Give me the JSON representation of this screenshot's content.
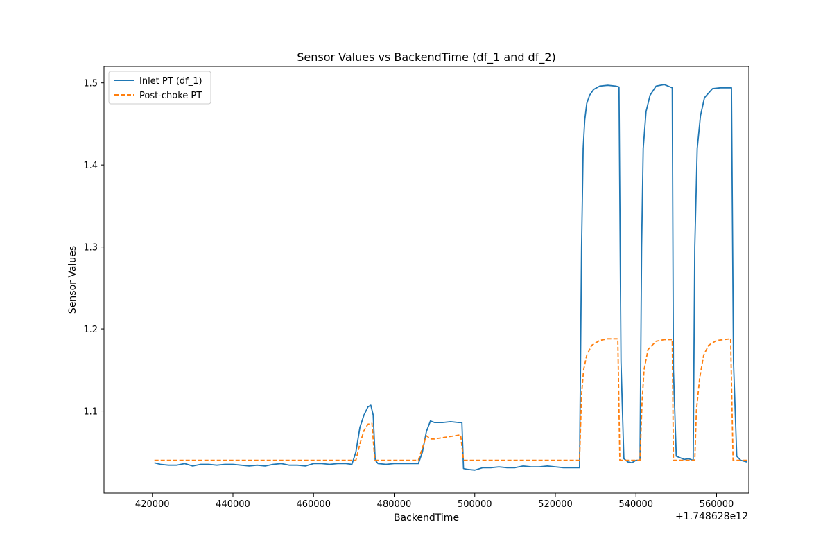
{
  "chart_data": {
    "type": "line",
    "title": "Sensor Values vs BackendTime (df_1 and df_2)",
    "xlabel": "BackendTime",
    "ylabel": "Sensor Values",
    "x_offset_text": "+1.748628e12",
    "xlim": [
      408000,
      568000
    ],
    "ylim": [
      1.0,
      1.52
    ],
    "xticks": [
      420000,
      440000,
      460000,
      480000,
      500000,
      520000,
      540000,
      560000
    ],
    "yticks": [
      1.1,
      1.2,
      1.3,
      1.4,
      1.5
    ],
    "xtick_labels": [
      "420000",
      "440000",
      "460000",
      "480000",
      "500000",
      "520000",
      "540000",
      "560000"
    ],
    "ytick_labels": [
      "1.1",
      "1.2",
      "1.3",
      "1.4",
      "1.5"
    ],
    "grid": false,
    "legend_position": "top-left",
    "series": [
      {
        "name": "Inlet PT (df_1)",
        "color": "#1f77b4",
        "style": "solid",
        "x": [
          420500,
          422000,
          424000,
          426000,
          428000,
          430000,
          432000,
          434000,
          436000,
          438000,
          440000,
          442000,
          444000,
          446000,
          448000,
          450000,
          452000,
          454000,
          456000,
          458000,
          460000,
          462000,
          464000,
          466000,
          468000,
          469500,
          470500,
          471500,
          472500,
          473500,
          474200,
          474800,
          475300,
          476000,
          478000,
          480000,
          482000,
          484000,
          486000,
          487000,
          488000,
          489000,
          490000,
          492000,
          494000,
          496000,
          496800,
          497200,
          498000,
          500000,
          502000,
          504000,
          506000,
          508000,
          510000,
          512000,
          514000,
          516000,
          518000,
          520000,
          522000,
          524000,
          526000,
          526500,
          526900,
          527300,
          527800,
          528500,
          529500,
          531000,
          533000,
          535000,
          535800,
          536300,
          537000,
          538000,
          539000,
          540000,
          541000,
          541400,
          541800,
          542500,
          543500,
          545000,
          547000,
          549000,
          549300,
          550000,
          551000,
          552000,
          553000,
          554200,
          554600,
          555200,
          556000,
          557000,
          559000,
          561000,
          563000,
          563700,
          564200,
          565000,
          566000,
          567500
        ],
        "y": [
          1.037,
          1.035,
          1.034,
          1.034,
          1.036,
          1.033,
          1.035,
          1.035,
          1.034,
          1.035,
          1.035,
          1.034,
          1.033,
          1.034,
          1.033,
          1.035,
          1.036,
          1.034,
          1.034,
          1.033,
          1.036,
          1.036,
          1.035,
          1.036,
          1.036,
          1.035,
          1.05,
          1.08,
          1.095,
          1.105,
          1.107,
          1.095,
          1.04,
          1.036,
          1.035,
          1.036,
          1.036,
          1.036,
          1.036,
          1.05,
          1.075,
          1.088,
          1.086,
          1.086,
          1.087,
          1.086,
          1.086,
          1.03,
          1.029,
          1.028,
          1.031,
          1.031,
          1.032,
          1.031,
          1.031,
          1.033,
          1.032,
          1.032,
          1.033,
          1.032,
          1.031,
          1.031,
          1.031,
          1.3,
          1.42,
          1.455,
          1.475,
          1.485,
          1.492,
          1.496,
          1.497,
          1.496,
          1.495,
          1.16,
          1.042,
          1.038,
          1.037,
          1.04,
          1.04,
          1.3,
          1.42,
          1.465,
          1.485,
          1.496,
          1.498,
          1.494,
          1.15,
          1.045,
          1.043,
          1.041,
          1.042,
          1.04,
          1.3,
          1.42,
          1.46,
          1.482,
          1.493,
          1.494,
          1.494,
          1.494,
          1.16,
          1.045,
          1.04,
          1.038
        ]
      },
      {
        "name": "Post-choke PT",
        "color": "#ff7f0e",
        "style": "dashed",
        "x": [
          420500,
          430000,
          440000,
          450000,
          460000,
          470500,
          471500,
          472500,
          473500,
          474500,
          475200,
          476000,
          480000,
          486000,
          487000,
          488000,
          489000,
          490000,
          496500,
          497200,
          500000,
          510000,
          520000,
          526000,
          526500,
          527000,
          527800,
          529000,
          531000,
          533000,
          535500,
          536000,
          538000,
          541000,
          541500,
          542000,
          543000,
          545000,
          547000,
          549000,
          549300,
          552000,
          554600,
          555000,
          555800,
          556800,
          558000,
          560000,
          563500,
          564100,
          566000,
          567500
        ],
        "y": [
          1.04,
          1.04,
          1.04,
          1.04,
          1.04,
          1.04,
          1.06,
          1.076,
          1.084,
          1.085,
          1.04,
          1.04,
          1.04,
          1.04,
          1.055,
          1.07,
          1.066,
          1.066,
          1.071,
          1.04,
          1.04,
          1.04,
          1.04,
          1.04,
          1.12,
          1.15,
          1.168,
          1.18,
          1.186,
          1.188,
          1.188,
          1.04,
          1.04,
          1.04,
          1.11,
          1.15,
          1.175,
          1.185,
          1.187,
          1.187,
          1.04,
          1.04,
          1.04,
          1.1,
          1.14,
          1.168,
          1.18,
          1.186,
          1.188,
          1.04,
          1.04,
          1.04
        ]
      }
    ]
  }
}
